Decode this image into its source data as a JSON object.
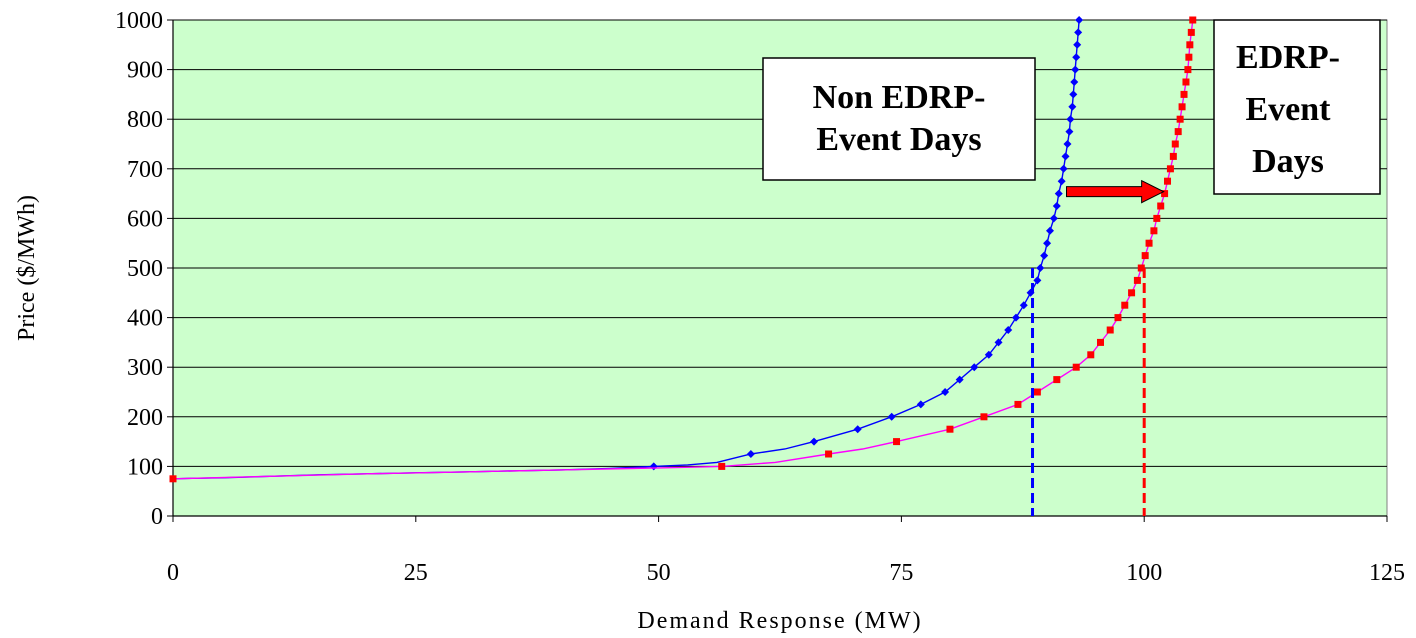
{
  "chart_data": {
    "type": "line",
    "xlabel": "Demand Response (MW)",
    "ylabel": "Price ($/MWh)",
    "xlim": [
      0,
      125
    ],
    "ylim": [
      0,
      1000
    ],
    "x_ticks": [
      0,
      25,
      50,
      75,
      100,
      125
    ],
    "y_ticks": [
      0,
      100,
      200,
      300,
      400,
      500,
      600,
      700,
      800,
      900,
      1000
    ],
    "grid": "horizontal",
    "plot_background": "#ccffcc",
    "series": [
      {
        "color": "#0000ff",
        "marker": "diamond",
        "line_points": [
          [
            0,
            75
          ],
          [
            2,
            76
          ],
          [
            5,
            77
          ],
          [
            10,
            80
          ],
          [
            15,
            83
          ],
          [
            20,
            85
          ],
          [
            25,
            87
          ],
          [
            30,
            89
          ],
          [
            35,
            91
          ],
          [
            40,
            93
          ],
          [
            45,
            96
          ],
          [
            49.5,
            100
          ],
          [
            53,
            103
          ],
          [
            56,
            108
          ],
          [
            59.5,
            125
          ],
          [
            63,
            135
          ],
          [
            66,
            150
          ],
          [
            70.5,
            175
          ],
          [
            74,
            200
          ],
          [
            77,
            225
          ],
          [
            79.5,
            250
          ],
          [
            81,
            275
          ],
          [
            82.5,
            300
          ],
          [
            84,
            325
          ],
          [
            85,
            350
          ],
          [
            86,
            375
          ],
          [
            86.8,
            400
          ],
          [
            87.6,
            425
          ],
          [
            88.3,
            450
          ],
          [
            89,
            475
          ],
          [
            89.3,
            500
          ],
          [
            89.7,
            525
          ],
          [
            90,
            550
          ],
          [
            90.3,
            575
          ],
          [
            90.7,
            600
          ],
          [
            91,
            625
          ],
          [
            91.2,
            650
          ],
          [
            91.5,
            675
          ],
          [
            91.7,
            700
          ],
          [
            91.9,
            725
          ],
          [
            92.1,
            750
          ],
          [
            92.3,
            775
          ],
          [
            92.4,
            800
          ],
          [
            92.6,
            825
          ],
          [
            92.7,
            850
          ],
          [
            92.8,
            875
          ],
          [
            92.9,
            900
          ],
          [
            93,
            925
          ],
          [
            93.1,
            950
          ],
          [
            93.2,
            975
          ],
          [
            93.3,
            1000
          ]
        ],
        "marker_points": [
          [
            49.5,
            100
          ],
          [
            59.5,
            125
          ],
          [
            66,
            150
          ],
          [
            70.5,
            175
          ],
          [
            74,
            200
          ],
          [
            77,
            225
          ],
          [
            79.5,
            250
          ],
          [
            81,
            275
          ],
          [
            82.5,
            300
          ],
          [
            84,
            325
          ],
          [
            85,
            350
          ],
          [
            86,
            375
          ],
          [
            86.8,
            400
          ],
          [
            87.6,
            425
          ],
          [
            88.3,
            450
          ],
          [
            89,
            475
          ],
          [
            89.3,
            500
          ],
          [
            89.7,
            525
          ],
          [
            90,
            550
          ],
          [
            90.3,
            575
          ],
          [
            90.7,
            600
          ],
          [
            91,
            625
          ],
          [
            91.2,
            650
          ],
          [
            91.5,
            675
          ],
          [
            91.7,
            700
          ],
          [
            91.9,
            725
          ],
          [
            92.1,
            750
          ],
          [
            92.3,
            775
          ],
          [
            92.4,
            800
          ],
          [
            92.6,
            825
          ],
          [
            92.7,
            850
          ],
          [
            92.8,
            875
          ],
          [
            92.9,
            900
          ],
          [
            93,
            925
          ],
          [
            93.1,
            950
          ],
          [
            93.2,
            975
          ],
          [
            93.3,
            1000
          ]
        ]
      },
      {
        "color": "#ff00ff",
        "marker_color": "#ff0000",
        "marker": "square",
        "line_points": [
          [
            0,
            75
          ],
          [
            10,
            80
          ],
          [
            20,
            85
          ],
          [
            30,
            89
          ],
          [
            40,
            93
          ],
          [
            50,
            97
          ],
          [
            56.5,
            100
          ],
          [
            62,
            108
          ],
          [
            67.5,
            125
          ],
          [
            71,
            135
          ],
          [
            74.5,
            150
          ],
          [
            80,
            175
          ],
          [
            83.5,
            200
          ],
          [
            87,
            225
          ],
          [
            89,
            250
          ],
          [
            91,
            275
          ],
          [
            93,
            300
          ],
          [
            94.5,
            325
          ],
          [
            95.5,
            350
          ],
          [
            96.5,
            375
          ],
          [
            97.3,
            400
          ],
          [
            98,
            425
          ],
          [
            98.7,
            450
          ],
          [
            99.3,
            475
          ],
          [
            99.7,
            500
          ],
          [
            100.1,
            525
          ],
          [
            100.5,
            550
          ],
          [
            101,
            575
          ],
          [
            101.3,
            600
          ],
          [
            101.7,
            625
          ],
          [
            102.1,
            650
          ],
          [
            102.4,
            675
          ],
          [
            102.7,
            700
          ],
          [
            103,
            725
          ],
          [
            103.2,
            750
          ],
          [
            103.5,
            775
          ],
          [
            103.7,
            800
          ],
          [
            103.9,
            825
          ],
          [
            104.1,
            850
          ],
          [
            104.3,
            875
          ],
          [
            104.5,
            900
          ],
          [
            104.6,
            925
          ],
          [
            104.7,
            950
          ],
          [
            104.85,
            975
          ],
          [
            105,
            1000
          ]
        ],
        "marker_points": [
          [
            0,
            75
          ],
          [
            56.5,
            100
          ],
          [
            67.5,
            125
          ],
          [
            74.5,
            150
          ],
          [
            80,
            175
          ],
          [
            83.5,
            200
          ],
          [
            87,
            225
          ],
          [
            89,
            250
          ],
          [
            91,
            275
          ],
          [
            93,
            300
          ],
          [
            94.5,
            325
          ],
          [
            95.5,
            350
          ],
          [
            96.5,
            375
          ],
          [
            97.3,
            400
          ],
          [
            98,
            425
          ],
          [
            98.7,
            450
          ],
          [
            99.3,
            475
          ],
          [
            99.7,
            500
          ],
          [
            100.1,
            525
          ],
          [
            100.5,
            550
          ],
          [
            101,
            575
          ],
          [
            101.3,
            600
          ],
          [
            101.7,
            625
          ],
          [
            102.1,
            650
          ],
          [
            102.4,
            675
          ],
          [
            102.7,
            700
          ],
          [
            103,
            725
          ],
          [
            103.2,
            750
          ],
          [
            103.5,
            775
          ],
          [
            103.7,
            800
          ],
          [
            103.9,
            825
          ],
          [
            104.1,
            850
          ],
          [
            104.3,
            875
          ],
          [
            104.5,
            900
          ],
          [
            104.6,
            925
          ],
          [
            104.7,
            950
          ],
          [
            104.85,
            975
          ],
          [
            105,
            1000
          ]
        ]
      }
    ],
    "reference_lines": [
      {
        "x": 88.5,
        "y": 500,
        "color": "#0000ff",
        "style": "dashed"
      },
      {
        "x": 100,
        "y": 500,
        "color": "#ff0000",
        "style": "dashed"
      }
    ],
    "annotations": {
      "non_edrp": {
        "lines": [
          "Non EDRP-",
          "Event Days"
        ]
      },
      "edrp": {
        "lines": [
          "EDRP-",
          "Event",
          "Days"
        ]
      },
      "arrow": {
        "color": "#ff0000",
        "from": [
          92,
          660
        ],
        "to": [
          102,
          660
        ]
      }
    }
  }
}
